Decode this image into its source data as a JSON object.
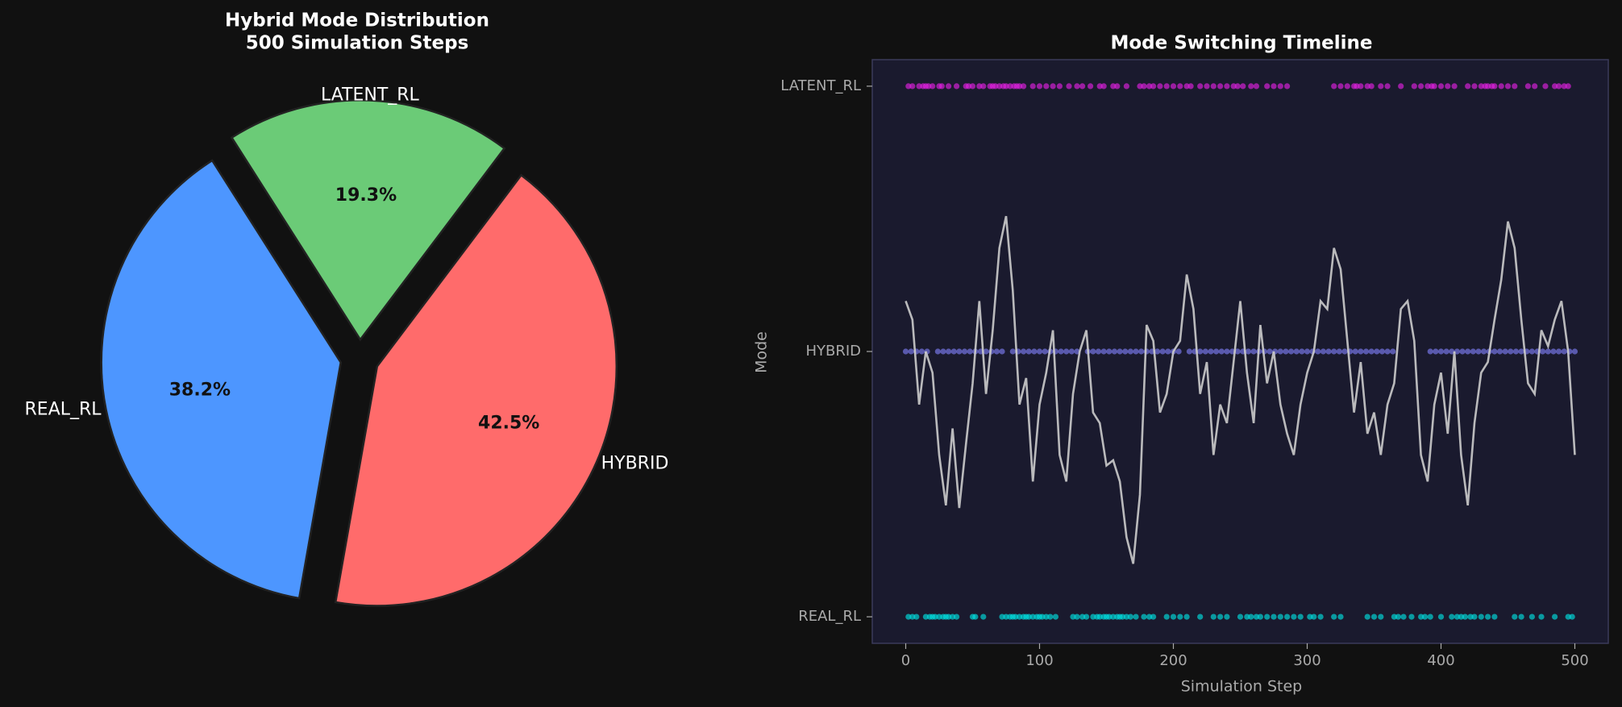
{
  "chart_data": [
    {
      "type": "pie",
      "title": "Hybrid Mode Distribution",
      "subtitle": "500 Simulation Steps",
      "categories": [
        "HYBRID",
        "LATENT_RL",
        "REAL_RL"
      ],
      "values": [
        42.5,
        19.3,
        38.2
      ],
      "value_labels": [
        "42.5%",
        "19.3%",
        "38.2%"
      ],
      "colors": [
        "#ff6b6b",
        "#6bcb77",
        "#4d96ff"
      ],
      "startangle": -100,
      "explode": 0.08
    },
    {
      "type": "timeline",
      "title": "Mode Switching Timeline",
      "xlabel": "Simulation Step",
      "ylabel": "Mode",
      "xlim": [
        -25,
        525
      ],
      "ylim": [
        -0.1,
        2.1
      ],
      "xticks": [
        0,
        100,
        200,
        300,
        400,
        500
      ],
      "yticks": [
        {
          "value": 0,
          "label": "REAL_RL"
        },
        {
          "value": 1,
          "label": "HYBRID"
        },
        {
          "value": 2,
          "label": "LATENT_RL"
        }
      ],
      "series": [
        {
          "type": "scatter",
          "color": "#e020e0",
          "x": [
            2,
            5,
            10,
            13,
            15,
            17,
            20,
            25,
            27,
            32,
            38,
            45,
            47,
            50,
            55,
            58,
            63,
            65,
            67,
            70,
            73,
            75,
            78,
            81,
            83,
            85,
            88,
            95,
            100,
            105,
            110,
            115,
            122,
            128,
            132,
            138,
            145,
            148,
            155,
            158,
            165,
            175,
            178,
            182,
            185,
            190,
            195,
            200,
            205,
            210,
            213,
            220,
            225,
            230,
            235,
            240,
            245,
            248,
            252,
            258,
            262,
            270,
            275,
            280,
            285,
            320,
            325,
            330,
            335,
            337,
            340,
            345,
            348,
            355,
            360,
            370,
            380,
            385,
            390,
            393,
            395,
            400,
            405,
            410,
            420,
            425,
            430,
            433,
            435,
            438,
            440,
            445,
            450,
            455,
            465,
            470,
            478,
            485,
            488,
            492,
            495
          ],
          "values": [
            2,
            2,
            2,
            2,
            2,
            2,
            2,
            2,
            2,
            2,
            2,
            2,
            2,
            2,
            2,
            2,
            2,
            2,
            2,
            2,
            2,
            2,
            2,
            2,
            2,
            2,
            2,
            2,
            2,
            2,
            2,
            2,
            2,
            2,
            2,
            2,
            2,
            2,
            2,
            2,
            2,
            2,
            2,
            2,
            2,
            2,
            2,
            2,
            2,
            2,
            2,
            2,
            2,
            2,
            2,
            2,
            2,
            2,
            2,
            2,
            2,
            2,
            2,
            2,
            2,
            2,
            2,
            2,
            2,
            2,
            2,
            2,
            2,
            2,
            2,
            2,
            2,
            2,
            2,
            2,
            2,
            2,
            2,
            2,
            2,
            2,
            2,
            2,
            2,
            2,
            2,
            2,
            2,
            2,
            2,
            2,
            2,
            2,
            2,
            2,
            2
          ]
        },
        {
          "type": "scatter",
          "color": "#7b7bf0",
          "x": [
            0,
            4,
            8,
            12,
            16,
            24,
            28,
            32,
            36,
            40,
            44,
            48,
            52,
            56,
            60,
            64,
            68,
            72,
            80,
            84,
            88,
            92,
            96,
            100,
            104,
            108,
            112,
            116,
            120,
            124,
            128,
            136,
            140,
            144,
            148,
            152,
            156,
            160,
            164,
            168,
            172,
            176,
            180,
            184,
            188,
            192,
            196,
            200,
            204,
            212,
            216,
            220,
            224,
            228,
            232,
            236,
            240,
            244,
            248,
            252,
            256,
            260,
            264,
            268,
            272,
            276,
            280,
            284,
            288,
            292,
            296,
            300,
            304,
            308,
            312,
            316,
            320,
            324,
            328,
            332,
            336,
            340,
            344,
            348,
            352,
            356,
            360,
            364,
            392,
            396,
            400,
            404,
            408,
            412,
            416,
            420,
            424,
            428,
            432,
            436,
            440,
            444,
            448,
            452,
            456,
            460,
            464,
            468,
            472,
            476,
            480,
            484,
            488,
            492,
            496,
            500
          ],
          "values": [
            1,
            1,
            1,
            1,
            1,
            1,
            1,
            1,
            1,
            1,
            1,
            1,
            1,
            1,
            1,
            1,
            1,
            1,
            1,
            1,
            1,
            1,
            1,
            1,
            1,
            1,
            1,
            1,
            1,
            1,
            1,
            1,
            1,
            1,
            1,
            1,
            1,
            1,
            1,
            1,
            1,
            1,
            1,
            1,
            1,
            1,
            1,
            1,
            1,
            1,
            1,
            1,
            1,
            1,
            1,
            1,
            1,
            1,
            1,
            1,
            1,
            1,
            1,
            1,
            1,
            1,
            1,
            1,
            1,
            1,
            1,
            1,
            1,
            1,
            1,
            1,
            1,
            1,
            1,
            1,
            1,
            1,
            1,
            1,
            1,
            1,
            1,
            1,
            1,
            1,
            1,
            1,
            1,
            1,
            1,
            1,
            1,
            1,
            1,
            1,
            1,
            1,
            1,
            1,
            1,
            1,
            1,
            1,
            1,
            1,
            1,
            1,
            1,
            1,
            1,
            1
          ]
        },
        {
          "type": "scatter",
          "color": "#00dede",
          "x": [
            2,
            5,
            8,
            15,
            18,
            20,
            22,
            25,
            28,
            30,
            32,
            35,
            38,
            50,
            52,
            58,
            72,
            75,
            78,
            80,
            82,
            85,
            88,
            90,
            92,
            95,
            98,
            100,
            102,
            105,
            108,
            112,
            125,
            128,
            132,
            135,
            140,
            143,
            145,
            148,
            150,
            152,
            155,
            158,
            160,
            162,
            165,
            168,
            172,
            178,
            182,
            185,
            195,
            200,
            205,
            210,
            220,
            230,
            235,
            240,
            250,
            255,
            258,
            262,
            265,
            270,
            275,
            280,
            285,
            290,
            295,
            302,
            305,
            310,
            320,
            325,
            345,
            350,
            355,
            365,
            368,
            372,
            378,
            385,
            388,
            392,
            400,
            408,
            412,
            415,
            418,
            422,
            425,
            430,
            435,
            440,
            455,
            460,
            468,
            475,
            485,
            495,
            498
          ],
          "values": [
            0,
            0,
            0,
            0,
            0,
            0,
            0,
            0,
            0,
            0,
            0,
            0,
            0,
            0,
            0,
            0,
            0,
            0,
            0,
            0,
            0,
            0,
            0,
            0,
            0,
            0,
            0,
            0,
            0,
            0,
            0,
            0,
            0,
            0,
            0,
            0,
            0,
            0,
            0,
            0,
            0,
            0,
            0,
            0,
            0,
            0,
            0,
            0,
            0,
            0,
            0,
            0,
            0,
            0,
            0,
            0,
            0,
            0,
            0,
            0,
            0,
            0,
            0,
            0,
            0,
            0,
            0,
            0,
            0,
            0,
            0,
            0,
            0,
            0,
            0,
            0,
            0,
            0,
            0,
            0,
            0,
            0,
            0,
            0,
            0,
            0,
            0,
            0,
            0,
            0,
            0,
            0,
            0,
            0,
            0,
            0,
            0,
            0,
            0,
            0,
            0,
            0,
            0
          ]
        },
        {
          "type": "line",
          "color": "#cccccc",
          "x": [
            0,
            5,
            10,
            15,
            20,
            25,
            30,
            35,
            40,
            45,
            50,
            55,
            60,
            65,
            70,
            75,
            80,
            85,
            90,
            95,
            100,
            105,
            110,
            115,
            120,
            125,
            130,
            135,
            140,
            145,
            150,
            155,
            160,
            165,
            170,
            175,
            180,
            185,
            190,
            195,
            200,
            205,
            210,
            215,
            220,
            225,
            230,
            235,
            240,
            245,
            250,
            255,
            260,
            265,
            270,
            275,
            280,
            285,
            290,
            295,
            300,
            305,
            310,
            315,
            320,
            325,
            330,
            335,
            340,
            345,
            350,
            355,
            360,
            365,
            370,
            375,
            380,
            385,
            390,
            395,
            400,
            405,
            410,
            415,
            420,
            425,
            430,
            435,
            440,
            445,
            450,
            455,
            460,
            465,
            470,
            475,
            480,
            485,
            490,
            495,
            500
          ],
          "values": [
            1.19,
            1.12,
            0.8,
            1.0,
            0.92,
            0.61,
            0.42,
            0.71,
            0.41,
            0.65,
            0.88,
            1.19,
            0.84,
            1.08,
            1.39,
            1.51,
            1.23,
            0.8,
            0.9,
            0.51,
            0.8,
            0.92,
            1.08,
            0.61,
            0.51,
            0.84,
            1.0,
            1.08,
            0.77,
            0.73,
            0.57,
            0.59,
            0.51,
            0.3,
            0.2,
            0.46,
            1.1,
            1.04,
            0.77,
            0.84,
            1.0,
            1.04,
            1.29,
            1.16,
            0.84,
            0.96,
            0.61,
            0.8,
            0.73,
            0.96,
            1.19,
            0.92,
            0.73,
            1.1,
            0.88,
            1.0,
            0.8,
            0.69,
            0.61,
            0.8,
            0.92,
            1.0,
            1.19,
            1.16,
            1.39,
            1.31,
            1.04,
            0.77,
            0.96,
            0.69,
            0.77,
            0.61,
            0.8,
            0.88,
            1.16,
            1.19,
            1.04,
            0.61,
            0.51,
            0.8,
            0.92,
            0.69,
            1.0,
            0.61,
            0.42,
            0.73,
            0.92,
            0.96,
            1.12,
            1.27,
            1.49,
            1.39,
            1.12,
            0.88,
            0.84,
            1.08,
            1.02,
            1.12,
            1.19,
            1.0,
            0.61
          ]
        }
      ]
    }
  ]
}
